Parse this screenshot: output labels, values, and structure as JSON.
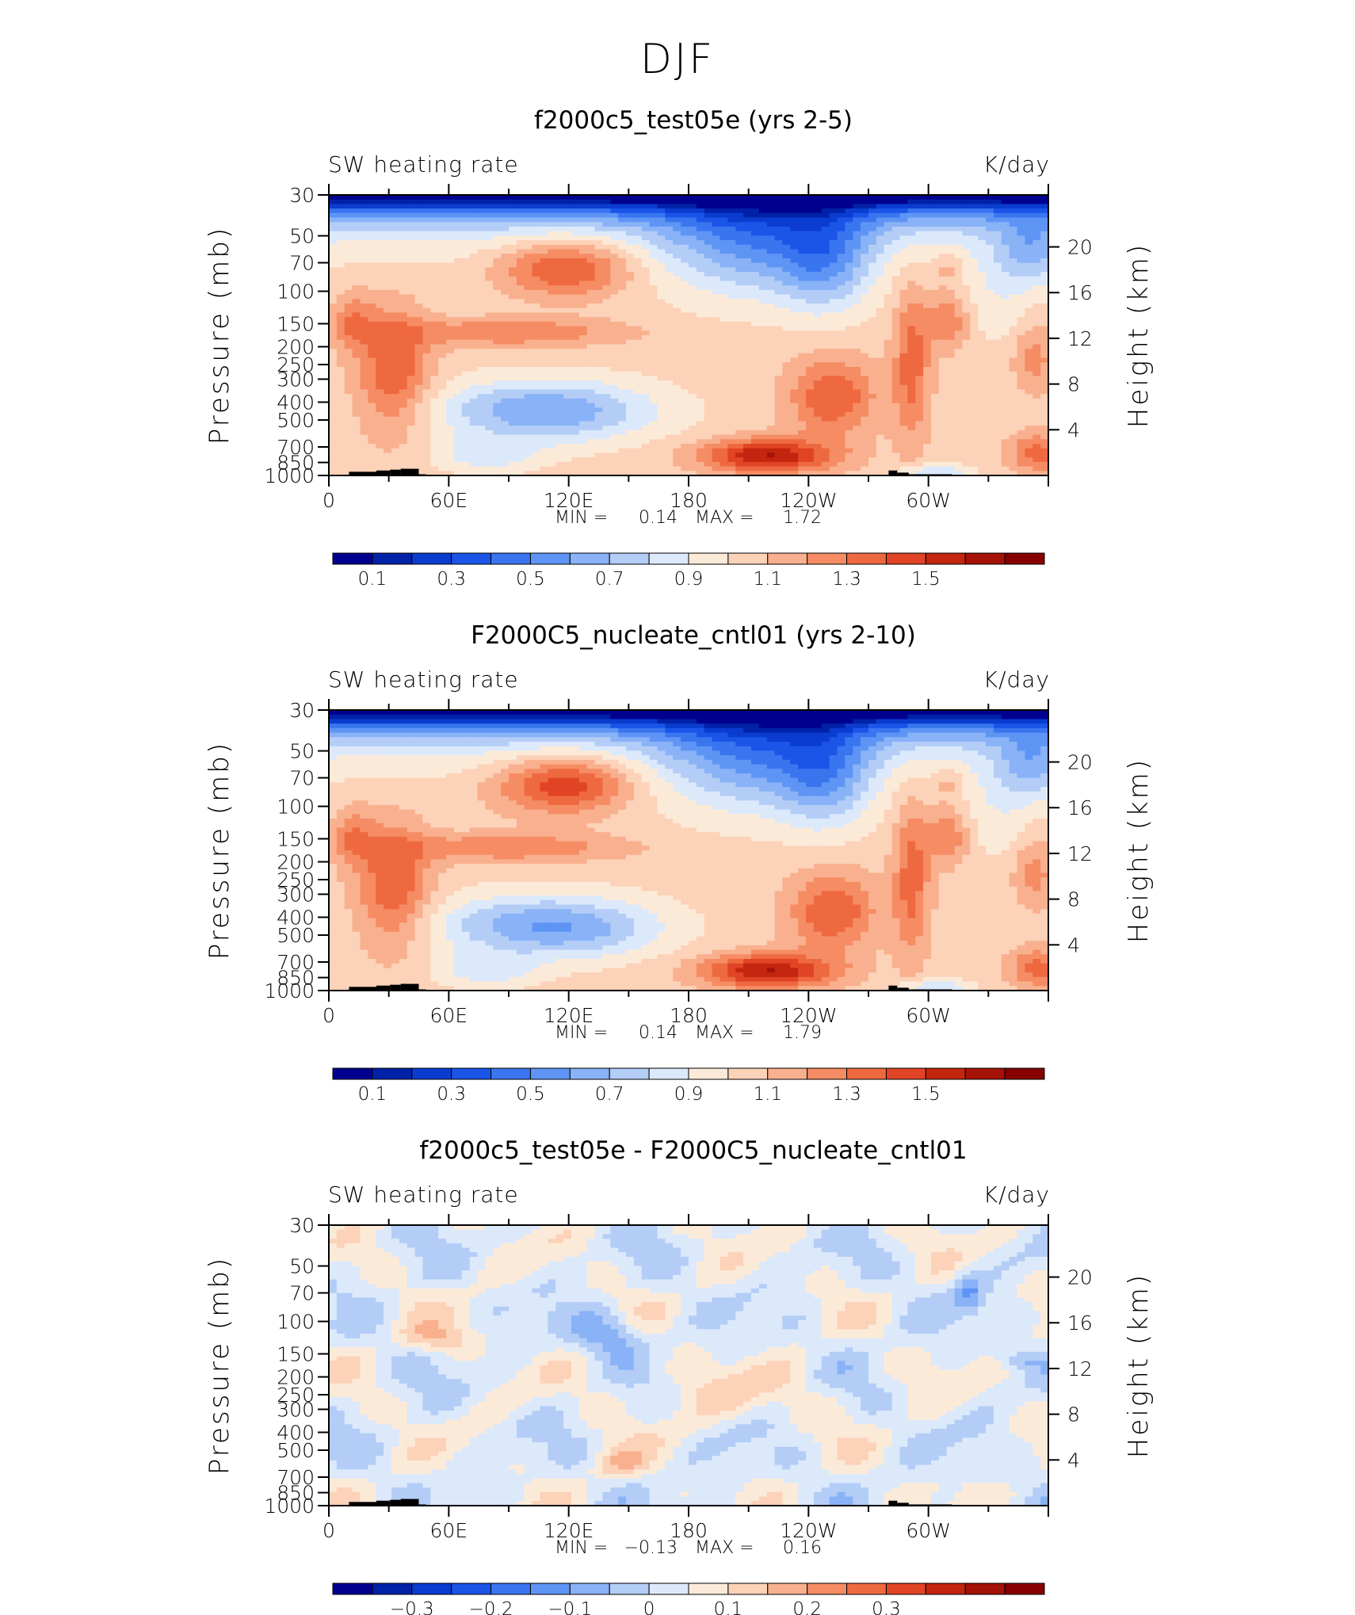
{
  "figure_title": "DJF",
  "colormap": [
    "#00008f",
    "#0022a8",
    "#0a3ccf",
    "#1a55e8",
    "#3a75f0",
    "#5e95f5",
    "#89b2f7",
    "#b3cdf7",
    "#dce9fa",
    "#fcead9",
    "#fcd2b8",
    "#f9b08e",
    "#f58c64",
    "#ef6940",
    "#e04424",
    "#c3260f",
    "#a51207",
    "#870000"
  ],
  "panels": [
    {
      "title": "f2000c5_test05e (yrs 2-5)",
      "left_label": "SW heating rate",
      "right_label": "K/day",
      "ylabel": "Pressure (mb)",
      "y2label": "Height (km)",
      "pressure_ticks": [
        "30",
        "50",
        "70",
        "100",
        "150",
        "200",
        "250",
        "300",
        "400",
        "500",
        "700",
        "850",
        "1000"
      ],
      "height_ticks": [
        "20",
        "16",
        "12",
        "8",
        "4"
      ],
      "lon_ticks": [
        "0",
        "60E",
        "120E",
        "180",
        "120W",
        "60W"
      ],
      "min_label": "MIN =",
      "min_value": "0.14",
      "max_label": "MAX =",
      "max_value": "1.72",
      "colorbar_labels": [
        "0.1",
        "0.3",
        "0.5",
        "0.7",
        "0.9",
        "1.1",
        "1.3",
        "1.5"
      ],
      "field": "base"
    },
    {
      "title": "F2000C5_nucleate_cntl01 (yrs 2-10)",
      "left_label": "SW heating rate",
      "right_label": "K/day",
      "ylabel": "Pressure (mb)",
      "y2label": "Height (km)",
      "pressure_ticks": [
        "30",
        "50",
        "70",
        "100",
        "150",
        "200",
        "250",
        "300",
        "400",
        "500",
        "700",
        "850",
        "1000"
      ],
      "height_ticks": [
        "20",
        "16",
        "12",
        "8",
        "4"
      ],
      "lon_ticks": [
        "0",
        "60E",
        "120E",
        "180",
        "120W",
        "60W"
      ],
      "min_label": "MIN =",
      "min_value": "0.14",
      "max_label": "MAX =",
      "max_value": "1.79",
      "colorbar_labels": [
        "0.1",
        "0.3",
        "0.5",
        "0.7",
        "0.9",
        "1.1",
        "1.3",
        "1.5"
      ],
      "field": "base"
    },
    {
      "title": "f2000c5_test05e - F2000C5_nucleate_cntl01",
      "left_label": "SW heating rate",
      "right_label": "K/day",
      "ylabel": "Pressure (mb)",
      "y2label": "Height (km)",
      "pressure_ticks": [
        "30",
        "50",
        "70",
        "100",
        "150",
        "200",
        "250",
        "300",
        "400",
        "500",
        "700",
        "850",
        "1000"
      ],
      "height_ticks": [
        "20",
        "16",
        "12",
        "8",
        "4"
      ],
      "lon_ticks": [
        "0",
        "60E",
        "120E",
        "180",
        "120W",
        "60W"
      ],
      "min_label": "MIN =",
      "min_value": "−0.13",
      "max_label": "MAX =",
      "max_value": "0.16",
      "colorbar_labels": [
        "−0.3",
        "−0.2",
        "−0.1",
        "0",
        "0.1",
        "0.2",
        "0.3"
      ],
      "field": "diff"
    }
  ],
  "chart_data": [
    {
      "type": "heatmap",
      "title": "f2000c5_test05e (yrs 2-5)",
      "variable": "SW heating rate",
      "units": "K/day",
      "xlabel": "",
      "ylabel": "Pressure (mb)",
      "y2label": "Height (km)",
      "x_ticks": [
        "0",
        "60E",
        "120E",
        "180",
        "120W",
        "60W"
      ],
      "y_ticks": [
        30,
        50,
        70,
        100,
        150,
        200,
        250,
        300,
        400,
        500,
        700,
        850,
        1000
      ],
      "y2_ticks": [
        20,
        16,
        12,
        8,
        4
      ],
      "min": 0.14,
      "max": 1.72,
      "levels": [
        0.1,
        0.2,
        0.3,
        0.4,
        0.5,
        0.6,
        0.7,
        0.8,
        0.9,
        1.0,
        1.1,
        1.2,
        1.3,
        1.4,
        1.5,
        1.6,
        1.7
      ]
    },
    {
      "type": "heatmap",
      "title": "F2000C5_nucleate_cntl01 (yrs 2-10)",
      "variable": "SW heating rate",
      "units": "K/day",
      "xlabel": "",
      "ylabel": "Pressure (mb)",
      "y2label": "Height (km)",
      "x_ticks": [
        "0",
        "60E",
        "120E",
        "180",
        "120W",
        "60W"
      ],
      "y_ticks": [
        30,
        50,
        70,
        100,
        150,
        200,
        250,
        300,
        400,
        500,
        700,
        850,
        1000
      ],
      "y2_ticks": [
        20,
        16,
        12,
        8,
        4
      ],
      "min": 0.14,
      "max": 1.79,
      "levels": [
        0.1,
        0.2,
        0.3,
        0.4,
        0.5,
        0.6,
        0.7,
        0.8,
        0.9,
        1.0,
        1.1,
        1.2,
        1.3,
        1.4,
        1.5,
        1.6,
        1.7
      ]
    },
    {
      "type": "heatmap",
      "title": "f2000c5_test05e - F2000C5_nucleate_cntl01",
      "variable": "SW heating rate",
      "units": "K/day",
      "xlabel": "",
      "ylabel": "Pressure (mb)",
      "y2label": "Height (km)",
      "x_ticks": [
        "0",
        "60E",
        "120E",
        "180",
        "120W",
        "60W"
      ],
      "y_ticks": [
        30,
        50,
        70,
        100,
        150,
        200,
        250,
        300,
        400,
        500,
        700,
        850,
        1000
      ],
      "y2_ticks": [
        20,
        16,
        12,
        8,
        4
      ],
      "min": -0.13,
      "max": 0.16,
      "levels": [
        -0.35,
        -0.3,
        -0.25,
        -0.2,
        -0.15,
        -0.1,
        -0.05,
        0,
        0.05,
        0.1,
        0.15,
        0.2,
        0.25,
        0.3,
        0.35
      ]
    }
  ]
}
